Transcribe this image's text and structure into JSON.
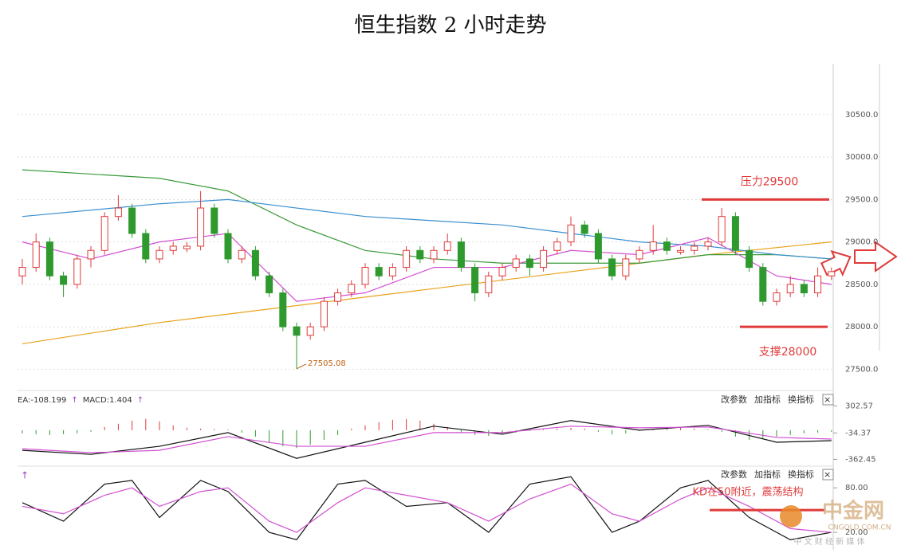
{
  "chart_data": {
    "type": "candlestick",
    "title": "恒生指数 2 小时走势",
    "up_color": "#e03a3a",
    "down_color": "#2e9a2e",
    "ylim": [
      27250,
      31100
    ],
    "yticks": [
      {
        "value": 27500,
        "label": "27500.0"
      },
      {
        "value": 28000,
        "label": "28000.0"
      },
      {
        "value": 28500,
        "label": "28500.0"
      },
      {
        "value": 29000,
        "label": "29000.0"
      },
      {
        "value": 29500,
        "label": "29500.0"
      },
      {
        "value": 30000,
        "label": "30000.0"
      },
      {
        "value": 30500,
        "label": "30500.0"
      }
    ],
    "grid": true,
    "ohlc": [
      [
        28600,
        28800,
        28500,
        28700
      ],
      [
        28700,
        29100,
        28650,
        29000
      ],
      [
        29000,
        29050,
        28550,
        28600
      ],
      [
        28600,
        28650,
        28350,
        28500
      ],
      [
        28500,
        28850,
        28450,
        28800
      ],
      [
        28800,
        28950,
        28700,
        28900
      ],
      [
        28900,
        29350,
        28850,
        29300
      ],
      [
        29300,
        29550,
        29250,
        29400
      ],
      [
        29400,
        29450,
        29050,
        29100
      ],
      [
        29100,
        29150,
        28750,
        28800
      ],
      [
        28800,
        28950,
        28750,
        28900
      ],
      [
        28900,
        29000,
        28850,
        28950
      ],
      [
        28920,
        29000,
        28880,
        28950
      ],
      [
        28950,
        29600,
        28900,
        29400
      ],
      [
        29400,
        29450,
        29050,
        29100
      ],
      [
        29100,
        29150,
        28750,
        28800
      ],
      [
        28800,
        28950,
        28750,
        28900
      ],
      [
        28900,
        28950,
        28550,
        28600
      ],
      [
        28600,
        28650,
        28350,
        28400
      ],
      [
        28400,
        28450,
        27950,
        28000
      ],
      [
        28000,
        28050,
        27505.08,
        27900
      ],
      [
        27900,
        28050,
        27850,
        28000
      ],
      [
        28000,
        28350,
        27950,
        28300
      ],
      [
        28300,
        28450,
        28250,
        28400
      ],
      [
        28400,
        28550,
        28350,
        28500
      ],
      [
        28500,
        28750,
        28450,
        28700
      ],
      [
        28700,
        28750,
        28550,
        28600
      ],
      [
        28600,
        28750,
        28550,
        28700
      ],
      [
        28700,
        28950,
        28650,
        28900
      ],
      [
        28900,
        28950,
        28750,
        28800
      ],
      [
        28800,
        28950,
        28750,
        28900
      ],
      [
        28900,
        29100,
        28850,
        29000
      ],
      [
        29000,
        29050,
        28650,
        28700
      ],
      [
        28700,
        28750,
        28300,
        28400
      ],
      [
        28400,
        28650,
        28350,
        28600
      ],
      [
        28600,
        28750,
        28550,
        28700
      ],
      [
        28700,
        28850,
        28650,
        28800
      ],
      [
        28800,
        28850,
        28600,
        28700
      ],
      [
        28700,
        28950,
        28650,
        28900
      ],
      [
        28900,
        29050,
        28850,
        29000
      ],
      [
        29000,
        29300,
        28950,
        29200
      ],
      [
        29200,
        29250,
        29050,
        29100
      ],
      [
        29100,
        29150,
        28750,
        28800
      ],
      [
        28800,
        28850,
        28550,
        28600
      ],
      [
        28600,
        28850,
        28550,
        28800
      ],
      [
        28800,
        28950,
        28750,
        28900
      ],
      [
        28900,
        29200,
        28850,
        29000
      ],
      [
        29000,
        29050,
        28850,
        28900
      ],
      [
        28880,
        28950,
        28850,
        28900
      ],
      [
        28900,
        29000,
        28850,
        28950
      ],
      [
        28950,
        29050,
        28900,
        29000
      ],
      [
        29000,
        29400,
        28950,
        29300
      ],
      [
        29300,
        29350,
        28850,
        28900
      ],
      [
        28900,
        28950,
        28650,
        28700
      ],
      [
        28700,
        28750,
        28250,
        28300
      ],
      [
        28300,
        28450,
        28250,
        28400
      ],
      [
        28400,
        28600,
        28350,
        28500
      ],
      [
        28500,
        28550,
        28350,
        28400
      ],
      [
        28400,
        28700,
        28350,
        28600
      ],
      [
        28600,
        28700,
        28550,
        28650
      ]
    ],
    "low_label": {
      "index": 20,
      "text": "27505.08"
    },
    "lines": [
      {
        "color": "#e8a21c",
        "x": [
          0,
          10,
          20,
          30,
          40,
          50,
          59
        ],
        "values": [
          27800,
          28050,
          28250,
          28450,
          28650,
          28850,
          29000
        ]
      },
      {
        "color": "#3a9a3a",
        "x": [
          0,
          5,
          10,
          15,
          20,
          25,
          30,
          35,
          40,
          45,
          50,
          55,
          59
        ],
        "values": [
          29850,
          29800,
          29750,
          29600,
          29200,
          28900,
          28800,
          28750,
          28750,
          28750,
          28850,
          28850,
          28800
        ]
      },
      {
        "color": "#3a8fd0",
        "x": [
          0,
          10,
          15,
          20,
          25,
          30,
          35,
          40,
          45,
          50,
          55,
          59
        ],
        "values": [
          29300,
          29450,
          29500,
          29400,
          29300,
          29250,
          29200,
          29100,
          29000,
          28950,
          28850,
          28800
        ]
      },
      {
        "color": "#d24fd2",
        "x": [
          0,
          5,
          10,
          15,
          20,
          25,
          30,
          35,
          40,
          45,
          50,
          55,
          59
        ],
        "values": [
          29000,
          28800,
          29000,
          29100,
          28300,
          28400,
          28700,
          28700,
          28900,
          28850,
          29050,
          28600,
          28500
        ]
      }
    ],
    "resistance": {
      "label": "压力29500",
      "value": 29500
    },
    "support": {
      "label": "支撑28000",
      "value": 28000
    },
    "buttons": [
      "改参数",
      "加指标",
      "换指标",
      "×"
    ],
    "macd": {
      "header": [
        "EA:-108.199",
        "↑",
        "MACD:1.404",
        "↑"
      ],
      "ylim": [
        -437,
        474
      ],
      "yticks": [
        302.57,
        -34.37,
        -362.45
      ],
      "hist": [
        -40,
        -50,
        -60,
        -50,
        -40,
        -20,
        40,
        80,
        120,
        140,
        110,
        60,
        30,
        20,
        15,
        10,
        -30,
        -80,
        -150,
        -200,
        -220,
        -180,
        -120,
        -60,
        20,
        60,
        100,
        130,
        140,
        120,
        80,
        40,
        -30,
        -60,
        -70,
        -50,
        -30,
        -10,
        10,
        20,
        30,
        20,
        -20,
        -50,
        -40,
        -10,
        10,
        20,
        30,
        20,
        10,
        -20,
        -80,
        -120,
        -100,
        -80,
        -60,
        -40,
        -30,
        -20
      ],
      "lines": [
        {
          "color": "#111111",
          "x": [
            0,
            5,
            10,
            15,
            20,
            25,
            30,
            35,
            40,
            45,
            50,
            55,
            59
          ],
          "values": [
            -250,
            -300,
            -200,
            -30,
            -350,
            -150,
            50,
            -50,
            120,
            0,
            60,
            -150,
            -130
          ]
        },
        {
          "color": "#d24fd2",
          "x": [
            0,
            5,
            10,
            15,
            20,
            25,
            30,
            35,
            40,
            45,
            50,
            55,
            59
          ],
          "values": [
            -230,
            -280,
            -250,
            -80,
            -200,
            -200,
            -30,
            -30,
            50,
            30,
            40,
            -90,
            -110
          ]
        }
      ]
    },
    "kd": {
      "ylim": [
        5,
        106
      ],
      "yticks": [
        {
          "value": 80,
          "label": "80.00"
        },
        {
          "value": 20,
          "label": "20.00"
        }
      ],
      "lines": [
        {
          "color": "#111111",
          "x": [
            0,
            3,
            6,
            8,
            10,
            13,
            15,
            18,
            20,
            23,
            25,
            28,
            31,
            34,
            37,
            40,
            43,
            45,
            48,
            50,
            53,
            56,
            59
          ],
          "values": [
            60,
            35,
            85,
            90,
            40,
            90,
            75,
            20,
            10,
            85,
            90,
            55,
            60,
            20,
            85,
            95,
            20,
            35,
            80,
            90,
            40,
            10,
            20
          ]
        },
        {
          "color": "#d24fd2",
          "x": [
            0,
            3,
            6,
            8,
            10,
            13,
            15,
            18,
            20,
            23,
            25,
            28,
            31,
            34,
            37,
            40,
            43,
            45,
            48,
            50,
            53,
            56,
            59
          ],
          "values": [
            55,
            45,
            70,
            80,
            55,
            75,
            80,
            35,
            20,
            60,
            80,
            70,
            60,
            35,
            65,
            85,
            45,
            35,
            65,
            80,
            55,
            25,
            20
          ]
        }
      ],
      "note": {
        "label": "KD在50附近，震荡结构",
        "value": 50
      }
    },
    "watermark": [
      "中金网",
      "CNGOLD.COM.CN",
      "中 文 财 经 新 媒 体"
    ]
  }
}
